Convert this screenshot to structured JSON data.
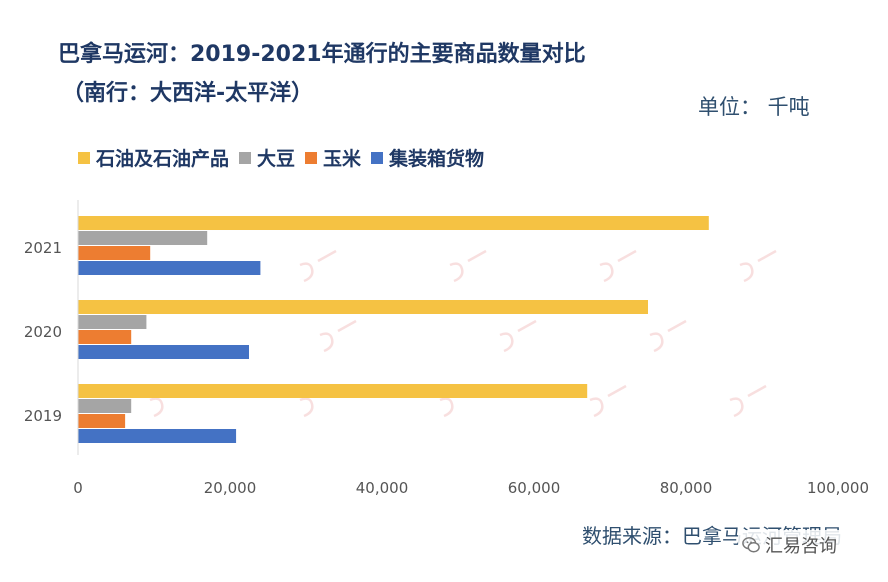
{
  "header": {
    "title_line1": "巴拿马运河：2019-2021年通行的主要商品数量对比",
    "title_line2": "（南行：大西洋-太平洋）",
    "unit": "单位：  千吨"
  },
  "footer": {
    "source": "数据来源：巴拿马运河管理局",
    "brand": "汇易咨询",
    "brand_icon": "wechat-icon"
  },
  "chart_data": {
    "type": "bar",
    "orientation": "horizontal",
    "categories": [
      "2021",
      "2020",
      "2019"
    ],
    "series": [
      {
        "name": "石油及石油产品",
        "color": "#f5c243",
        "values": [
          83000,
          75000,
          67000
        ]
      },
      {
        "name": "大豆",
        "color": "#a5a5a5",
        "values": [
          17000,
          9000,
          7000
        ]
      },
      {
        "name": "玉米",
        "color": "#ed7d31",
        "values": [
          9500,
          7000,
          6200
        ]
      },
      {
        "name": "集装箱货物",
        "color": "#4472c4",
        "values": [
          24000,
          22500,
          20800
        ]
      }
    ],
    "xlim": [
      0,
      100000
    ],
    "x_ticks": [
      0,
      20000,
      40000,
      60000,
      80000,
      100000
    ],
    "x_tick_labels": [
      "0",
      "20,000",
      "40,000",
      "60,000",
      "80,000",
      "100,000"
    ],
    "grid": false,
    "legend_position": "top"
  }
}
